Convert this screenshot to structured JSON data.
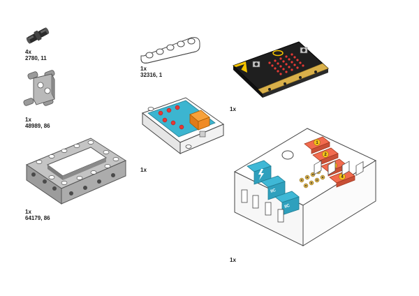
{
  "parts": [
    {
      "id": "pin-connector",
      "qty": "4x",
      "code": "2780, 11"
    },
    {
      "id": "cross-block",
      "qty": "1x",
      "code": "48989, 86"
    },
    {
      "id": "frame-5x7",
      "qty": "1x",
      "code": "64179, 86"
    },
    {
      "id": "beam-5",
      "qty": "1x",
      "code": "32316, 1"
    },
    {
      "id": "switch-module",
      "qty": "1x"
    },
    {
      "id": "microbit",
      "qty": "1x"
    },
    {
      "id": "expansion-board",
      "qty": "1x"
    }
  ],
  "board": {
    "port_labels": [
      "1",
      "2",
      "3",
      "4"
    ],
    "iic_label": "IIC",
    "colors": {
      "port_orange": "#f26b4e",
      "iic_cyan": "#3fb8d6",
      "microbit_black": "#1e1e1e",
      "gold": "#d9b04a"
    }
  },
  "microbit": {
    "button_a": "A",
    "button_b": "B"
  }
}
